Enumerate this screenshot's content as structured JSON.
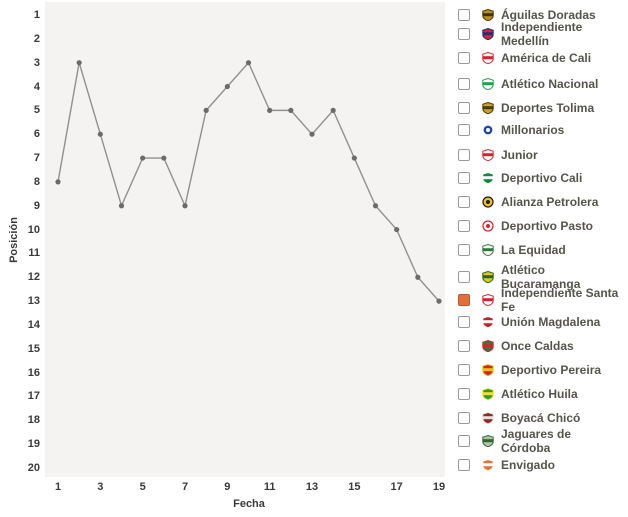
{
  "chart_data": {
    "type": "line",
    "x": [
      1,
      2,
      3,
      4,
      5,
      6,
      7,
      8,
      9,
      10,
      11,
      12,
      13,
      14,
      15,
      16,
      17,
      18,
      19
    ],
    "series": [
      {
        "name": "Independiente Santa Fe",
        "values": [
          8,
          3,
          6,
          9,
          7,
          7,
          9,
          5,
          4,
          3,
          5,
          5,
          6,
          5,
          7,
          9,
          10,
          12,
          13
        ]
      }
    ],
    "title": "",
    "xlabel": "Fecha",
    "ylabel": "Posición",
    "xlim": [
      1,
      19
    ],
    "ylim": [
      1,
      20
    ],
    "y_axis_inverted": true,
    "x_ticks": [
      1,
      3,
      5,
      7,
      9,
      11,
      13,
      15,
      17,
      19
    ],
    "y_ticks": [
      1,
      2,
      3,
      4,
      5,
      6,
      7,
      8,
      9,
      10,
      11,
      12,
      13,
      14,
      15,
      16,
      17,
      18,
      19,
      20
    ],
    "grid": false,
    "legend_position": "right"
  },
  "colors": {
    "line": "#909090",
    "marker": "#6b6b6b",
    "plot_background": "#f4f3f1",
    "checked_checkbox": "#e0703c",
    "legend_text": "#55544c",
    "axis_text": "#3a3a3a"
  },
  "legend": {
    "items": [
      {
        "label": "Águilas Doradas",
        "checked": false,
        "icon": "aguilas-doradas-crest",
        "shape": "shield",
        "colors": [
          "#b8901c",
          "#3f3208"
        ]
      },
      {
        "label": "Independiente Medellín",
        "checked": false,
        "icon": "independiente-medellin-crest",
        "shape": "shield",
        "colors": [
          "#d5232e",
          "#20307a"
        ]
      },
      {
        "label": "América de Cali",
        "checked": false,
        "icon": "america-de-cali-crest",
        "shape": "shield",
        "colors": [
          "#ffffff",
          "#d5232e"
        ]
      },
      {
        "label": "Atlético Nacional",
        "checked": false,
        "icon": "atletico-nacional-crest",
        "shape": "shield",
        "colors": [
          "#ffffff",
          "#1fa04a"
        ]
      },
      {
        "label": "Deportes Tolima",
        "checked": false,
        "icon": "deportes-tolima-crest",
        "shape": "shield",
        "colors": [
          "#c9a227",
          "#4a3a10"
        ]
      },
      {
        "label": "Millonarios",
        "checked": false,
        "icon": "millonarios-crest",
        "shape": "circle",
        "colors": [
          "#2244aa",
          "#ffffff"
        ]
      },
      {
        "label": "Junior",
        "checked": false,
        "icon": "junior-crest",
        "shape": "shield",
        "colors": [
          "#ffffff",
          "#d5232e"
        ]
      },
      {
        "label": "Deportivo Cali",
        "checked": false,
        "icon": "deportivo-cali-crest",
        "shape": "shield",
        "colors": [
          "#0c8a3e",
          "#ffffff"
        ]
      },
      {
        "label": "Alianza Petrolera",
        "checked": false,
        "icon": "alianza-petrolera-crest",
        "shape": "circle",
        "colors": [
          "#f0c318",
          "#1a1a1a"
        ]
      },
      {
        "label": "Deportivo Pasto",
        "checked": false,
        "icon": "deportivo-pasto-crest",
        "shape": "circle",
        "colors": [
          "#ffffff",
          "#d5232e"
        ]
      },
      {
        "label": "La Equidad",
        "checked": false,
        "icon": "la-equidad-crest",
        "shape": "shield",
        "colors": [
          "#ffffff",
          "#2d7a3a"
        ]
      },
      {
        "label": "Atlético Bucaramanga",
        "checked": false,
        "icon": "atletico-bucaramanga-crest",
        "shape": "shield",
        "colors": [
          "#e8c51e",
          "#1a6a2a"
        ]
      },
      {
        "label": "Independiente Santa Fe",
        "checked": true,
        "icon": "independiente-santa-fe-crest",
        "shape": "shield",
        "colors": [
          "#ffffff",
          "#d5232e"
        ]
      },
      {
        "label": "Unión Magdalena",
        "checked": false,
        "icon": "union-magdalena-crest",
        "shape": "shield",
        "colors": [
          "#c2232a",
          "#ffffff"
        ]
      },
      {
        "label": "Once Caldas",
        "checked": false,
        "icon": "once-caldas-crest",
        "shape": "shield",
        "colors": [
          "#2d7a3a",
          "#d5232e"
        ]
      },
      {
        "label": "Deportivo Pereira",
        "checked": false,
        "icon": "deportivo-pereira-crest",
        "shape": "shield",
        "colors": [
          "#d5232e",
          "#f0c318"
        ]
      },
      {
        "label": "Atlético Huila",
        "checked": false,
        "icon": "atletico-huila-crest",
        "shape": "shield",
        "colors": [
          "#2a9a3a",
          "#f2e02a"
        ]
      },
      {
        "label": "Boyacá Chicó",
        "checked": false,
        "icon": "boyaca-chico-crest",
        "shape": "shield",
        "colors": [
          "#8a2a2a",
          "#e8e2d8"
        ]
      },
      {
        "label": "Jaguares de Córdoba",
        "checked": false,
        "icon": "jaguares-de-cordoba-crest",
        "shape": "shield",
        "colors": [
          "#b8beb2",
          "#2a6a2a"
        ]
      },
      {
        "label": "Envigado",
        "checked": false,
        "icon": "envigado-crest",
        "shape": "shield",
        "colors": [
          "#e8732a",
          "#ffffff"
        ]
      }
    ]
  }
}
